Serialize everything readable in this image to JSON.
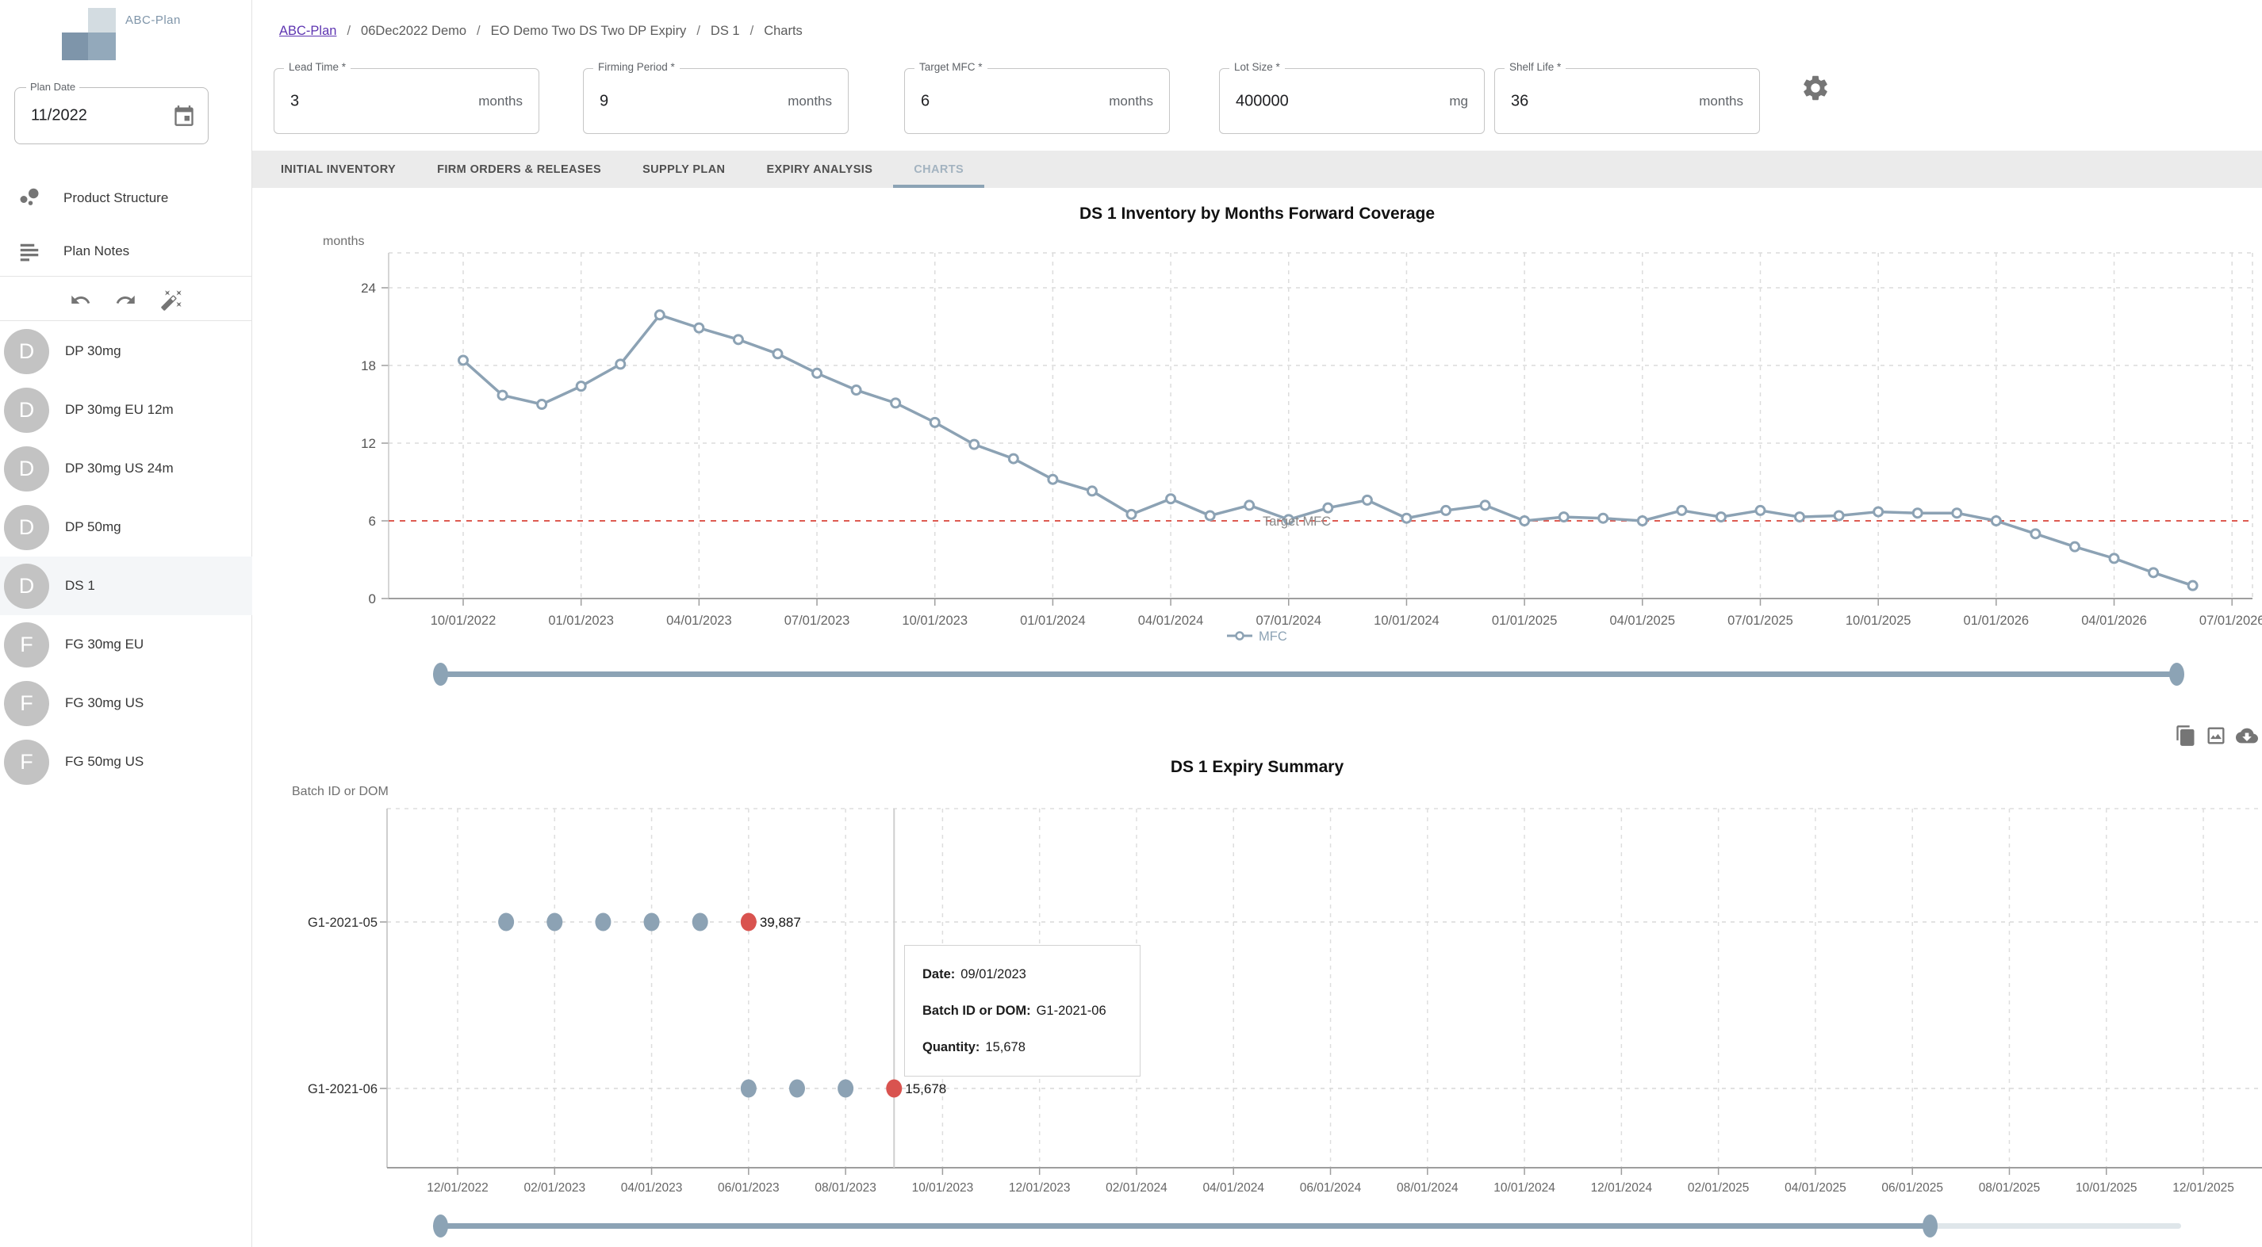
{
  "sidebar": {
    "logo_text": "ABC-Plan",
    "plan_date": {
      "label": "Plan Date",
      "value": "11/2022"
    },
    "nav": [
      {
        "label": "Product Structure"
      },
      {
        "label": "Plan Notes"
      }
    ],
    "items": [
      {
        "initial": "D",
        "label": "DP 30mg",
        "selected": false
      },
      {
        "initial": "D",
        "label": "DP 30mg EU 12m",
        "selected": false
      },
      {
        "initial": "D",
        "label": "DP 30mg US 24m",
        "selected": false
      },
      {
        "initial": "D",
        "label": "DP 50mg",
        "selected": false
      },
      {
        "initial": "D",
        "label": "DS 1",
        "selected": true
      },
      {
        "initial": "F",
        "label": "FG 30mg EU",
        "selected": false
      },
      {
        "initial": "F",
        "label": "FG 30mg US",
        "selected": false
      },
      {
        "initial": "F",
        "label": "FG 50mg US",
        "selected": false
      }
    ]
  },
  "breadcrumb": {
    "root": "ABC-Plan",
    "separator": "/",
    "segments": [
      "06Dec2022 Demo",
      "EO Demo Two DS Two DP Expiry",
      "DS 1",
      "Charts"
    ]
  },
  "parameters": [
    {
      "label": "Lead Time *",
      "value": "3",
      "suffix": "months"
    },
    {
      "label": "Firming Period *",
      "value": "9",
      "suffix": "months"
    },
    {
      "label": "Target MFC *",
      "value": "6",
      "suffix": "months"
    },
    {
      "label": "Lot Size *",
      "value": "400000",
      "suffix": "mg"
    },
    {
      "label": "Shelf Life *",
      "value": "36",
      "suffix": "months"
    }
  ],
  "tabs": [
    {
      "label": "INITIAL INVENTORY",
      "active": false
    },
    {
      "label": "FIRM ORDERS & RELEASES",
      "active": false
    },
    {
      "label": "SUPPLY PLAN",
      "active": false
    },
    {
      "label": "EXPIRY ANALYSIS",
      "active": false
    },
    {
      "label": "CHARTS",
      "active": true
    }
  ],
  "colors": {
    "accent": "#8CA2B4",
    "expired_red": "#D9534F",
    "target_line_red": "#DE5B52",
    "link_purple": "#5E35B1"
  },
  "chart_data": [
    {
      "type": "line",
      "title": "DS 1 Inventory by Months Forward Coverage",
      "ylabel": "months",
      "x": [
        "10/01/2022",
        "11/01/2022",
        "12/01/2022",
        "01/01/2023",
        "02/01/2023",
        "03/01/2023",
        "04/01/2023",
        "05/01/2023",
        "06/01/2023",
        "07/01/2023",
        "08/01/2023",
        "09/01/2023",
        "10/01/2023",
        "11/01/2023",
        "12/01/2023",
        "01/01/2024",
        "02/01/2024",
        "03/01/2024",
        "04/01/2024",
        "05/01/2024",
        "06/01/2024",
        "07/01/2024",
        "08/01/2024",
        "09/01/2024",
        "10/01/2024",
        "11/01/2024",
        "12/01/2024",
        "01/01/2025",
        "02/01/2025",
        "03/01/2025",
        "04/01/2025",
        "05/01/2025",
        "06/01/2025",
        "07/01/2025",
        "08/01/2025",
        "09/01/2025",
        "10/01/2025",
        "11/01/2025",
        "12/01/2025",
        "01/01/2026",
        "02/01/2026",
        "03/01/2026",
        "04/01/2026",
        "05/01/2026",
        "06/01/2026"
      ],
      "series": [
        {
          "name": "MFC",
          "color": "#8CA2B4",
          "values": [
            18.4,
            15.7,
            15.0,
            16.4,
            18.1,
            21.9,
            20.9,
            20.0,
            18.9,
            17.4,
            16.1,
            15.1,
            13.6,
            11.9,
            10.8,
            9.2,
            8.3,
            6.5,
            7.7,
            6.4,
            7.2,
            6.1,
            7.0,
            7.6,
            6.2,
            6.8,
            7.2,
            6.0,
            6.3,
            6.2,
            6.0,
            6.8,
            6.3,
            6.8,
            6.3,
            6.4,
            6.7,
            6.6,
            6.6,
            6.0,
            5.0,
            4.0,
            3.1,
            2.0,
            1.0
          ]
        }
      ],
      "target_line": {
        "label": "Target MFC",
        "value": 6,
        "color": "#DE5B52"
      },
      "yticks": [
        0,
        6,
        12,
        18,
        24
      ],
      "ylim": [
        0,
        26.7
      ],
      "xticks": [
        "10/01/2022",
        "01/01/2023",
        "04/01/2023",
        "07/01/2023",
        "10/01/2023",
        "01/01/2024",
        "04/01/2024",
        "07/01/2024",
        "10/01/2024",
        "01/01/2025",
        "04/01/2025",
        "07/01/2025",
        "10/01/2025",
        "01/01/2026",
        "04/01/2026",
        "07/01/2026"
      ],
      "legend": [
        "MFC"
      ],
      "legend_position": "bottom",
      "grid": true
    },
    {
      "type": "scatter",
      "title": "DS 1 Expiry Summary",
      "ylabel": "Batch ID or DOM",
      "categories": [
        "G1-2021-05",
        "G1-2021-06"
      ],
      "series": [
        {
          "batch": "G1-2021-05",
          "points": [
            {
              "date": "01/01/2023"
            },
            {
              "date": "02/01/2023"
            },
            {
              "date": "03/01/2023"
            },
            {
              "date": "04/01/2023"
            },
            {
              "date": "05/01/2023"
            },
            {
              "date": "06/01/2023",
              "expired": true
            }
          ],
          "final_quantity": "39,887"
        },
        {
          "batch": "G1-2021-06",
          "points": [
            {
              "date": "06/01/2023"
            },
            {
              "date": "07/01/2023"
            },
            {
              "date": "08/01/2023"
            },
            {
              "date": "09/01/2023",
              "expired": true
            }
          ],
          "final_quantity": "15,678"
        }
      ],
      "xticks": [
        "12/01/2022",
        "02/01/2023",
        "04/01/2023",
        "06/01/2023",
        "08/01/2023",
        "10/01/2023",
        "12/01/2023",
        "02/01/2024",
        "04/01/2024",
        "06/01/2024",
        "08/01/2024",
        "10/01/2024",
        "12/01/2024",
        "02/01/2025",
        "04/01/2025",
        "06/01/2025",
        "08/01/2025",
        "10/01/2025",
        "12/01/2025"
      ],
      "crosshair_date": "09/01/2023",
      "colors": {
        "dot": "#8CA2B4",
        "expired": "#D9534F"
      },
      "tooltip": {
        "date_label": "Date:",
        "date_value": "09/01/2023",
        "batch_label": "Batch ID or DOM:",
        "batch_value": "G1-2021-06",
        "quantity_label": "Quantity:",
        "quantity_value": "15,678"
      },
      "grid": true
    }
  ]
}
